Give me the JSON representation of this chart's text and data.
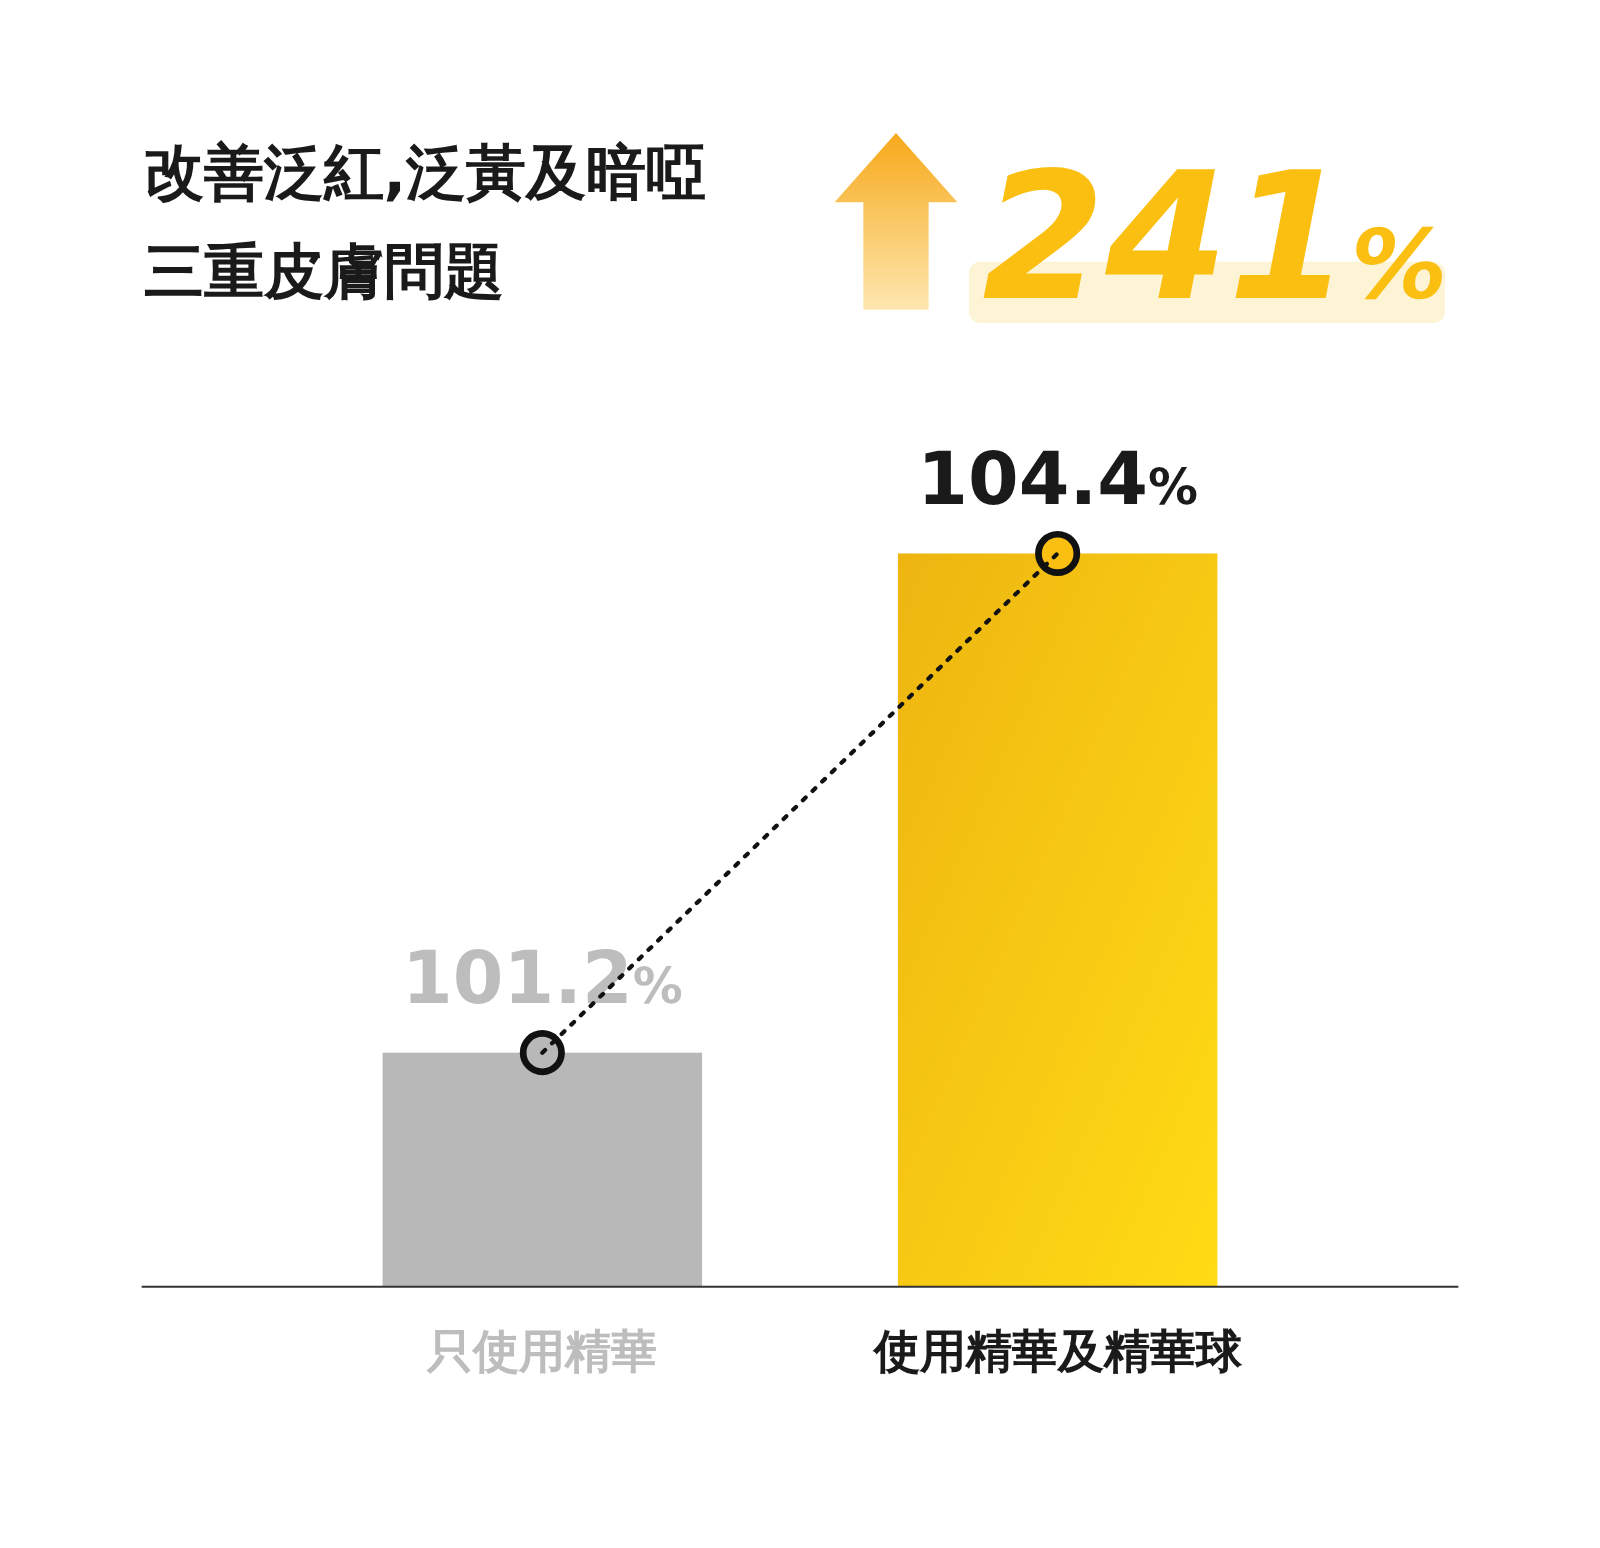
{
  "chart_data": {
    "type": "bar",
    "title": "改善泛紅,泛黃及暗啞三重皮膚問題",
    "annotations": [
      "241%"
    ],
    "categories": [
      "只使用精華",
      "使用精華及精華球"
    ],
    "ylim": [
      99.7,
      104.4
    ],
    "series": [
      {
        "colors": [
          "#b8b8b8",
          "#fbbf12"
        ],
        "values": [
          101.2,
          104.4
        ],
        "value_labels": [
          "101.2%",
          "104.4%"
        ]
      },
      {
        "type": "line",
        "color": "#111111",
        "values": [
          101.2,
          104.4
        ],
        "marker": "circle",
        "line_style": "dotted"
      }
    ]
  }
}
